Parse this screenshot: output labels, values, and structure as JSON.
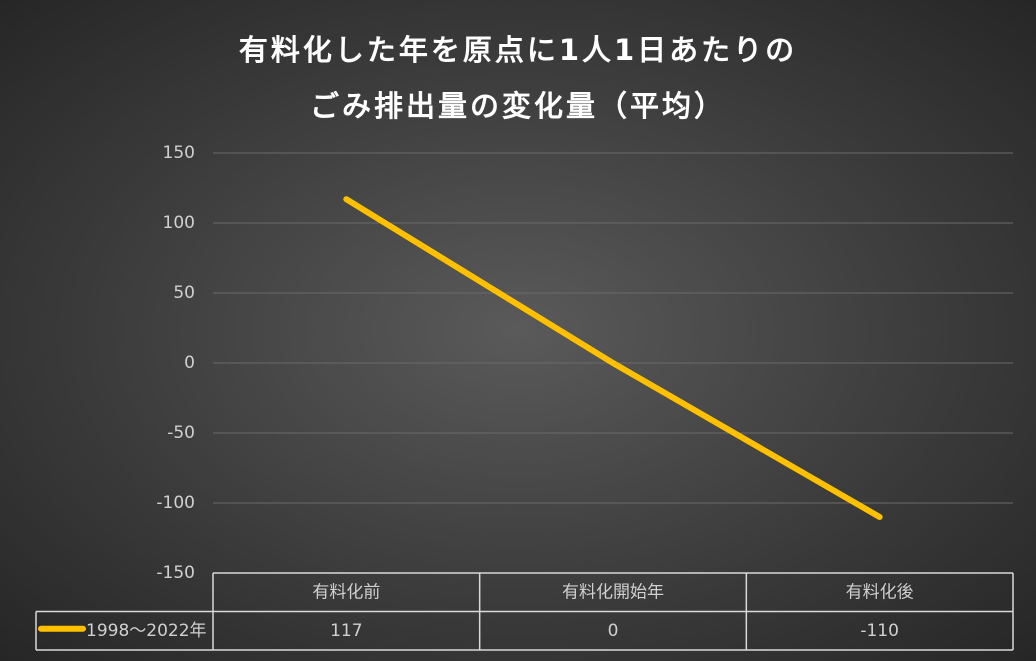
{
  "chart_data": {
    "type": "line",
    "title": "有料化した年を原点に1人1日あたりの\nごみ排出量の変化量（平均）",
    "categories": [
      "有料化前",
      "有料化開始年",
      "有料化後"
    ],
    "series": [
      {
        "name": "1998〜2022年",
        "color": "#ffc000",
        "values": [
          117,
          0,
          -110
        ]
      }
    ],
    "ylim": [
      -150,
      150
    ],
    "yticks": [
      150,
      100,
      50,
      0,
      -50,
      -100,
      -150
    ],
    "grid": true,
    "negative_tick_color": "#c00000",
    "data_table": true
  }
}
